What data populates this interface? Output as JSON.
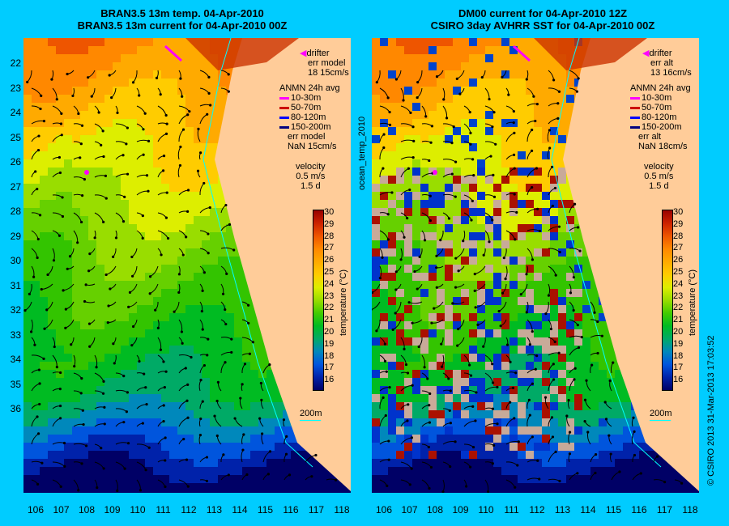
{
  "left": {
    "title1": "BRAN3.5 13m temp. 04-Apr-2010",
    "title2": "BRAN3.5 13m current for 04-Apr-2010 00Z",
    "drifter": [
      "drifter",
      "err model",
      "18 15cm/s"
    ],
    "anmn": [
      "ANMN 24h avg",
      "10-30m",
      "50-70m",
      "80-120m",
      "150-200m",
      "err model",
      "NaN 15cm/s"
    ],
    "velocity": [
      "velocity",
      "0.5 m/s",
      "1.5 d"
    ],
    "scale": "200m"
  },
  "right": {
    "title1": "DM00 current for 04-Apr-2010 12Z",
    "title2": "CSIRO 3day AVHRR SST for 04-Apr-2010 00Z",
    "drifter": [
      "drifter",
      "err alt",
      "13 16cm/s"
    ],
    "anmn": [
      "ANMN 24h avg",
      "10-30m",
      "50-70m",
      "80-120m",
      "150-200m",
      "err alt",
      "NaN 18cm/s"
    ],
    "velocity": [
      "velocity",
      "0.5 m/s",
      "1.5 d"
    ],
    "scale": "200m"
  },
  "colors": {
    "anmn_10_30": "#ff00ff",
    "anmn_50_70": "#cc0000",
    "anmn_80_120": "#0000ff",
    "anmn_150_200": "#000080",
    "drifter": "#ff00ff",
    "land": "#ffcc99"
  },
  "colorbar": {
    "label": "temperature (°C)",
    "ticks": [
      "30",
      "29",
      "28",
      "27",
      "26",
      "25",
      "24",
      "23",
      "22",
      "21",
      "20",
      "19",
      "18",
      "17",
      "16"
    ]
  },
  "side_label": "ocean_temp_2010",
  "credit": "© CSIRO 2013   31-Mar-2013 17:03:52",
  "lat_ticks": [
    "22",
    "23",
    "24",
    "25",
    "26",
    "27",
    "28",
    "29",
    "30",
    "31",
    "32",
    "33",
    "34",
    "35",
    "36"
  ],
  "lon_ticks": [
    "106",
    "107",
    "108",
    "109",
    "110",
    "111",
    "112",
    "113",
    "114",
    "115",
    "116",
    "117",
    "118"
  ]
}
